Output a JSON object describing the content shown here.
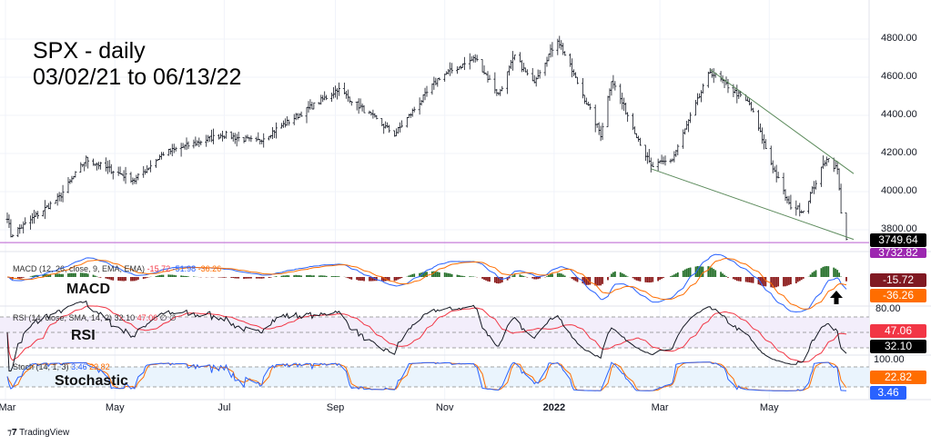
{
  "chart_data": {
    "type": "ohlc",
    "title": "SPX - daily\n03/02/21 to 06/13/22",
    "symbol": "SPX",
    "start_date": "2021-03-02",
    "end_date": "2022-06-13",
    "key_closes": [
      [
        "2021-03-02",
        3870
      ],
      [
        "2021-03-04",
        3770
      ],
      [
        "2021-03-31",
        3970
      ],
      [
        "2021-04-15",
        4170
      ],
      [
        "2021-05-12",
        4060
      ],
      [
        "2021-05-28",
        4200
      ],
      [
        "2021-06-30",
        4300
      ],
      [
        "2021-07-19",
        4260
      ],
      [
        "2021-08-31",
        4520
      ],
      [
        "2021-09-02",
        4540
      ],
      [
        "2021-10-04",
        4300
      ],
      [
        "2021-10-29",
        4600
      ],
      [
        "2021-11-18",
        4700
      ],
      [
        "2021-12-01",
        4510
      ],
      [
        "2021-12-10",
        4710
      ],
      [
        "2021-12-20",
        4570
      ],
      [
        "2022-01-03",
        4800
      ],
      [
        "2022-01-27",
        4300
      ],
      [
        "2022-02-02",
        4590
      ],
      [
        "2022-02-24",
        4130
      ],
      [
        "2022-03-08",
        4170
      ],
      [
        "2022-03-29",
        4630
      ],
      [
        "2022-04-20",
        4460
      ],
      [
        "2022-05-02",
        4150
      ],
      [
        "2022-05-12",
        3930
      ],
      [
        "2022-05-20",
        3900
      ],
      [
        "2022-06-02",
        4180
      ],
      [
        "2022-06-08",
        4115
      ],
      [
        "2022-06-10",
        3900
      ],
      [
        "2022-06-13",
        3750
      ]
    ],
    "trendlines": [
      {
        "name": "upper",
        "from": [
          "2022-03-29",
          4640
        ],
        "to": [
          "2022-06-13",
          4080
        ]
      },
      {
        "name": "lower",
        "from": [
          "2022-02-24",
          4120
        ],
        "to": [
          "2022-06-13",
          3735
        ]
      }
    ],
    "support_level": 3732.82,
    "last_price": "3749.64",
    "support_label": "3732.82",
    "y_ticks": [
      "4800.00",
      "4600.00",
      "4400.00",
      "4200.00",
      "4000.00",
      "3800.00"
    ],
    "y_tick_values": [
      4800,
      4600,
      4400,
      4200,
      4000,
      3800
    ],
    "ylim": [
      3700,
      4850
    ],
    "x_ticks": [
      "Mar",
      "May",
      "Jul",
      "Sep",
      "Nov",
      "2022",
      "Mar",
      "May"
    ],
    "x_tick_dates": [
      "2021-03-01",
      "2021-05-01",
      "2021-07-01",
      "2021-09-01",
      "2021-11-01",
      "2022-01-01",
      "2022-03-01",
      "2022-05-01"
    ],
    "colors": {
      "up": "#131722",
      "macd": "#2962ff",
      "signal": "#ff6d00",
      "hist_up": "#26702b",
      "hist_dn": "#8b1a1a",
      "rsi": "#131722",
      "rsi_ma": "#f23645",
      "stoch_k": "#2962ff",
      "stoch_d": "#ff6d00",
      "support": "#c77dd8",
      "trend": "#5b8a5b"
    }
  },
  "annotations": {
    "macd": "MACD",
    "rsi": "RSI",
    "stoch": "Stochastic"
  },
  "macd": {
    "legend": "MACD (12, 26, close, 9, EMA, EMA)",
    "v1": "-15.72",
    "v2": "-51.98",
    "v3": "-36.26",
    "tag1": "-15.72",
    "tag2": "-36.26"
  },
  "rsi": {
    "legend": "RSI (14, close, SMA, 14, 2)",
    "v1": "32.10",
    "v2": "47.06",
    "v3": "∅  ∅",
    "tag1": "47.06",
    "tag2": "32.10",
    "axis": "80.00"
  },
  "stoch": {
    "legend": "Stoch (14, 1, 3)",
    "v1": "3.46",
    "v2": "22.82",
    "tag1": "22.82",
    "tag2": "3.46",
    "axis": "100.00"
  },
  "branding": "TradingView"
}
